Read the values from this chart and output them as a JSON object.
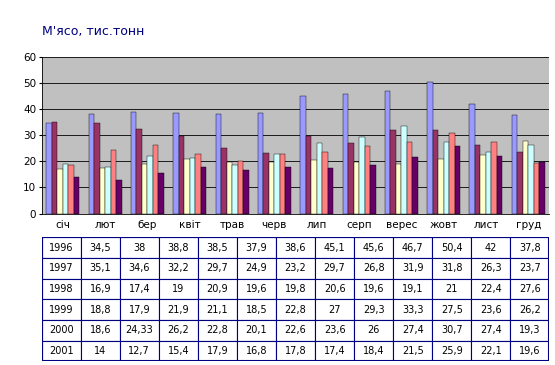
{
  "title": "М'ясо, тис.тонн",
  "months": [
    "січ",
    "лют",
    "бер",
    "квіт",
    "трав",
    "черв",
    "лип",
    "серп",
    "верес",
    "жовт",
    "лист",
    "груд"
  ],
  "years": [
    "1996",
    "1997",
    "1998",
    "1999",
    "2000",
    "2001"
  ],
  "data": {
    "1996": [
      34.5,
      38,
      38.8,
      38.5,
      37.9,
      38.6,
      45.1,
      45.6,
      46.7,
      50.4,
      42,
      37.8
    ],
    "1997": [
      35.1,
      34.6,
      32.2,
      29.7,
      24.9,
      23.2,
      29.7,
      26.8,
      31.9,
      31.8,
      26.3,
      23.7
    ],
    "1998": [
      16.9,
      17.4,
      19,
      20.9,
      19.6,
      19.8,
      20.6,
      19.6,
      19.1,
      21,
      22.4,
      27.6
    ],
    "1999": [
      18.8,
      17.9,
      21.9,
      21.1,
      18.5,
      22.8,
      27,
      29.3,
      33.3,
      27.5,
      23.6,
      26.2
    ],
    "2000": [
      18.6,
      24.33,
      26.2,
      22.8,
      20.1,
      22.6,
      23.6,
      26,
      27.4,
      30.7,
      27.4,
      19.3
    ],
    "2001": [
      14,
      12.7,
      15.4,
      17.9,
      16.8,
      17.8,
      17.4,
      18.4,
      21.5,
      25.9,
      22.1,
      19.6
    ]
  },
  "table_data": {
    "1996": [
      "34,5",
      "38",
      "38,8",
      "38,5",
      "37,9",
      "38,6",
      "45,1",
      "45,6",
      "46,7",
      "50,4",
      "42",
      "37,8"
    ],
    "1997": [
      "35,1",
      "34,6",
      "32,2",
      "29,7",
      "24,9",
      "23,2",
      "29,7",
      "26,8",
      "31,9",
      "31,8",
      "26,3",
      "23,7"
    ],
    "1998": [
      "16,9",
      "17,4",
      "19",
      "20,9",
      "19,6",
      "19,8",
      "20,6",
      "19,6",
      "19,1",
      "21",
      "22,4",
      "27,6"
    ],
    "1999": [
      "18,8",
      "17,9",
      "21,9",
      "21,1",
      "18,5",
      "22,8",
      "27",
      "29,3",
      "33,3",
      "27,5",
      "23,6",
      "26,2"
    ],
    "2000": [
      "18,6",
      "24,33",
      "26,2",
      "22,8",
      "20,1",
      "22,6",
      "23,6",
      "26",
      "27,4",
      "30,7",
      "27,4",
      "19,3"
    ],
    "2001": [
      "14",
      "12,7",
      "15,4",
      "17,9",
      "16,8",
      "17,8",
      "17,4",
      "18,4",
      "21,5",
      "25,9",
      "22,1",
      "19,6"
    ]
  },
  "bar_colors": {
    "1996": "#9999FF",
    "1997": "#993366",
    "1998": "#FFFFCC",
    "1999": "#CCFFFF",
    "2000": "#FF8080",
    "2001": "#660066"
  },
  "bar_edge_color": "#000000",
  "ylim": [
    0,
    60
  ],
  "yticks": [
    0,
    10,
    20,
    30,
    40,
    50,
    60
  ],
  "plot_bg_color": "#C0C0C0",
  "fig_bg_color": "#FFFFFF",
  "grid_color": "#000000",
  "table_border_color": "#000080",
  "title_color": "#000080",
  "title_fontsize": 9,
  "tick_fontsize": 7.5,
  "month_label_fontsize": 7.5,
  "table_fontsize": 7.0
}
